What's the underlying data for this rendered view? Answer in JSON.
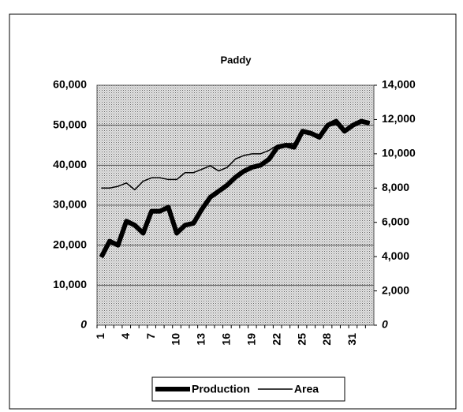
{
  "chart_data": {
    "type": "line",
    "title": "Paddy",
    "categories": [
      "1",
      null,
      null,
      "4",
      null,
      null,
      "7",
      null,
      null,
      "10",
      null,
      null,
      "13",
      null,
      null,
      "16",
      null,
      null,
      "19",
      null,
      null,
      "22",
      null,
      null,
      "25",
      null,
      null,
      "28",
      null,
      null,
      "31",
      null,
      null
    ],
    "series": [
      {
        "name": "Production",
        "color": "#000000",
        "values": [
          17000,
          21000,
          20000,
          26000,
          25000,
          23000,
          28500,
          28500,
          29500,
          23000,
          25000,
          25500,
          29000,
          32000,
          33500,
          35000,
          37000,
          38500,
          39500,
          40000,
          41500,
          44500,
          45000,
          44500,
          48500,
          48000,
          47000,
          50000,
          51000,
          48500,
          50000,
          51000,
          50500
        ]
      },
      {
        "name": "Area",
        "color": "#000000",
        "axis": "y2",
        "values": [
          8000,
          8000,
          8100,
          8300,
          7900,
          8400,
          8600,
          8600,
          8500,
          8500,
          8900,
          8900,
          9100,
          9300,
          9000,
          9200,
          9700,
          9900,
          10000,
          10000,
          10200,
          10500,
          10600,
          10600,
          11200,
          11100,
          11000,
          11600,
          11700,
          11400,
          11600,
          11800,
          11800
        ]
      }
    ],
    "ylim": [
      0,
      60000
    ],
    "yticks": [
      0,
      {
        "value": 10000,
        "label": "10,000"
      },
      {
        "value": 20000,
        "label": "20,000"
      },
      {
        "value": 30000,
        "label": "30,000"
      },
      {
        "value": 40000,
        "label": "40,000"
      },
      {
        "value": 50000,
        "label": "50,000"
      },
      {
        "value": 60000,
        "label": "60,000"
      }
    ],
    "y2lim": [
      0,
      14000
    ],
    "y2ticks": [
      0,
      {
        "value": 2000,
        "label": "2,000"
      },
      {
        "value": 4000,
        "label": "4,000"
      },
      {
        "value": 6000,
        "label": "6,000"
      },
      {
        "value": 8000,
        "label": "8,000"
      },
      {
        "value": 10000,
        "label": "10,000"
      },
      {
        "value": 12000,
        "label": "12,000"
      },
      {
        "value": 14000,
        "label": "14,000"
      }
    ],
    "grid": true,
    "legend": "bottom"
  }
}
